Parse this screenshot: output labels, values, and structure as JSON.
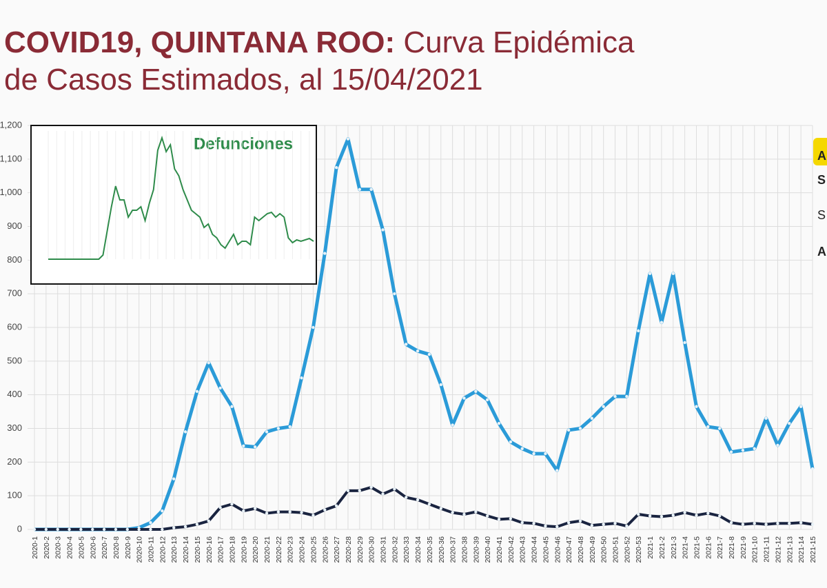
{
  "chart_data": [
    {
      "type": "line",
      "title_parts": [
        "COVID19, QUINTANA ROO:",
        "Curva Epidémica",
        "de Casos Estimados, al 15/04/2021"
      ],
      "categories": [
        "2020-1",
        "2020-2",
        "2020-3",
        "2020-4",
        "2020-5",
        "2020-6",
        "2020-7",
        "2020-8",
        "2020-9",
        "2020-10",
        "2020-11",
        "2020-12",
        "2020-13",
        "2020-14",
        "2020-15",
        "2020-16",
        "2020-17",
        "2020-18",
        "2020-19",
        "2020-20",
        "2020-21",
        "2020-22",
        "2020-23",
        "2020-24",
        "2020-25",
        "2020-26",
        "2020-27",
        "2020-28",
        "2020-29",
        "2020-30",
        "2020-31",
        "2020-32",
        "2020-33",
        "2020-34",
        "2020-35",
        "2020-36",
        "2020-37",
        "2020-38",
        "2020-39",
        "2020-40",
        "2020-41",
        "2020-42",
        "2020-43",
        "2020-44",
        "2020-45",
        "2020-46",
        "2020-47",
        "2020-48",
        "2020-49",
        "2020-50",
        "2020-51",
        "2020-52",
        "2020-53",
        "2021-1",
        "2021-2",
        "2021-3",
        "2021-4",
        "2021-5",
        "2021-6",
        "2021-7",
        "2021-8",
        "2021-9",
        "2021-10",
        "2021-11",
        "2021-12",
        "2021-13",
        "2021-14",
        "2021-15"
      ],
      "series": [
        {
          "color": "#2b9bd8",
          "values": [
            0,
            0,
            0,
            0,
            0,
            0,
            0,
            0,
            0,
            5,
            20,
            55,
            150,
            290,
            410,
            495,
            420,
            365,
            248,
            245,
            290,
            300,
            305,
            450,
            600,
            820,
            1075,
            1160,
            1010,
            1010,
            890,
            700,
            550,
            530,
            520,
            430,
            310,
            390,
            410,
            385,
            315,
            260,
            240,
            225,
            225,
            175,
            295,
            300,
            330,
            365,
            395,
            395,
            590,
            760,
            615,
            760,
            555,
            365,
            305,
            300,
            230,
            235,
            240,
            330,
            250,
            315,
            365,
            180
          ]
        },
        {
          "color": "#1a2440",
          "values": [
            0,
            0,
            0,
            0,
            0,
            0,
            0,
            0,
            0,
            0,
            0,
            0,
            5,
            8,
            15,
            25,
            65,
            75,
            55,
            62,
            48,
            52,
            52,
            50,
            42,
            58,
            70,
            115,
            115,
            125,
            105,
            120,
            95,
            88,
            75,
            62,
            50,
            45,
            52,
            40,
            30,
            32,
            20,
            18,
            10,
            8,
            20,
            25,
            12,
            15,
            18,
            10,
            45,
            40,
            38,
            42,
            50,
            42,
            48,
            40,
            20,
            15,
            18,
            15,
            18,
            18,
            20,
            15
          ]
        }
      ],
      "ylim": [
        0,
        1200
      ],
      "yticks": [
        0,
        100,
        200,
        300,
        400,
        500,
        600,
        700,
        800,
        900,
        {
          "value": 1000,
          "label": "1,000"
        },
        {
          "value": 1100,
          "label": "1,100"
        },
        {
          "value": 1200,
          "label": "1,200"
        }
      ],
      "grid": true,
      "side_labels": [
        "A",
        "S",
        "S",
        "A"
      ]
    },
    {
      "type": "line",
      "title": "Defunciones",
      "color": "#2e8b4a",
      "values": [
        0,
        0,
        0,
        0,
        0,
        0,
        0,
        0,
        0,
        0,
        0,
        0,
        0,
        6,
        41,
        76,
        106,
        86,
        86,
        61,
        71,
        71,
        76,
        56,
        81,
        101,
        158,
        176,
        156,
        166,
        131,
        121,
        101,
        86,
        71,
        66,
        61,
        46,
        51,
        36,
        31,
        21,
        16,
        26,
        36,
        21,
        26,
        26,
        21,
        61,
        56,
        61,
        66,
        68,
        61,
        66,
        61,
        31,
        24,
        28,
        26,
        28,
        30,
        26
      ],
      "ylim": [
        0,
        190
      ]
    }
  ]
}
